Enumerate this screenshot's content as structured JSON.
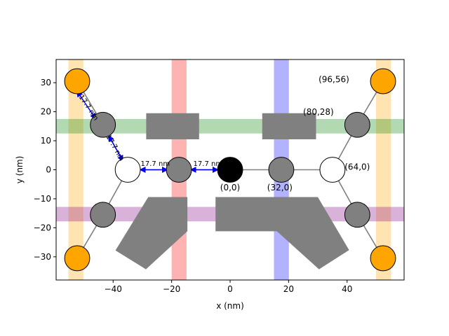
{
  "chart_data": {
    "type": "scatter",
    "title": "",
    "xlabel": "x (nm)",
    "ylabel": "y (nm)",
    "xlim": [
      -59.5,
      59.5
    ],
    "ylim": [
      -38,
      38
    ],
    "grid": false,
    "xticks": [
      -40,
      -20,
      0,
      20,
      40
    ],
    "yticks": [
      -30,
      -20,
      -10,
      0,
      10,
      20,
      30
    ],
    "bands": [
      {
        "orientation": "vertical",
        "from": -55.3,
        "to": -50.2,
        "color": "#ffa500",
        "opacity": 0.3
      },
      {
        "orientation": "vertical",
        "from": 49.9,
        "to": 55.0,
        "color": "#ffa500",
        "opacity": 0.3
      },
      {
        "orientation": "vertical",
        "from": -20.0,
        "to": -14.9,
        "color": "#ff0000",
        "opacity": 0.3
      },
      {
        "orientation": "vertical",
        "from": 15.0,
        "to": 20.1,
        "color": "#0000ff",
        "opacity": 0.3
      },
      {
        "orientation": "horizontal",
        "from": 12.5,
        "to": 17.5,
        "color": "#008000",
        "opacity": 0.3
      },
      {
        "orientation": "horizontal",
        "from": -17.8,
        "to": -12.8,
        "color": "#800080",
        "opacity": 0.3
      }
    ],
    "rectangles": [
      {
        "points": [
          [
            -28.7,
            10.5
          ],
          [
            -10.6,
            10.5
          ],
          [
            -10.6,
            19.5
          ],
          [
            -28.7,
            19.5
          ]
        ]
      },
      {
        "points": [
          [
            11.0,
            10.5
          ],
          [
            29.4,
            10.5
          ],
          [
            29.4,
            19.5
          ],
          [
            11.0,
            19.5
          ]
        ]
      },
      {
        "points": [
          [
            -28.0,
            -9.4
          ],
          [
            -14.6,
            -9.4
          ],
          [
            -14.6,
            -21.2
          ],
          [
            -28.0,
            -21.2
          ]
        ]
      },
      {
        "points": [
          [
            -28.0,
            -9.4
          ],
          [
            -14.6,
            -21.2
          ],
          [
            -28.8,
            -34.3
          ],
          [
            -39.2,
            -27.8
          ]
        ]
      },
      {
        "points": [
          [
            -5.0,
            -9.4
          ],
          [
            30.0,
            -9.4
          ],
          [
            30.0,
            -21.2
          ],
          [
            -5.0,
            -21.2
          ]
        ]
      },
      {
        "points": [
          [
            30.0,
            -9.4
          ],
          [
            40.7,
            -27.7
          ],
          [
            30.4,
            -34.3
          ],
          [
            16.0,
            -21.2
          ]
        ]
      }
    ],
    "bonds": [
      [
        [
          -52.3,
          30.5
        ],
        [
          -43.5,
          15.5
        ]
      ],
      [
        [
          -43.5,
          15.5
        ],
        [
          -35.0,
          0
        ]
      ],
      [
        [
          -35.0,
          0
        ],
        [
          -43.5,
          -15.5
        ]
      ],
      [
        [
          -43.5,
          -15.5
        ],
        [
          -52.3,
          -30.5
        ]
      ],
      [
        [
          -35.0,
          0
        ],
        [
          0,
          0
        ]
      ],
      [
        [
          0,
          0
        ],
        [
          35.0,
          0
        ]
      ],
      [
        [
          35.0,
          0
        ],
        [
          43.5,
          15.5
        ]
      ],
      [
        [
          43.5,
          15.5
        ],
        [
          52.3,
          30.5
        ]
      ],
      [
        [
          35.0,
          0
        ],
        [
          43.5,
          -15.5
        ]
      ],
      [
        [
          43.5,
          -15.5
        ],
        [
          52.3,
          -30.5
        ]
      ]
    ],
    "points": [
      {
        "x": -52.3,
        "y": 30.5,
        "color": "#ffa500"
      },
      {
        "x": -52.3,
        "y": -30.5,
        "color": "#ffa500"
      },
      {
        "x": 52.3,
        "y": 30.5,
        "color": "#ffa500"
      },
      {
        "x": 52.3,
        "y": -30.5,
        "color": "#ffa500"
      },
      {
        "x": -43.5,
        "y": 15.5,
        "color": "#808080"
      },
      {
        "x": -43.5,
        "y": -15.5,
        "color": "#808080"
      },
      {
        "x": 43.5,
        "y": 15.5,
        "color": "#808080"
      },
      {
        "x": 43.5,
        "y": -15.5,
        "color": "#808080"
      },
      {
        "x": -17.5,
        "y": 0,
        "color": "#808080"
      },
      {
        "x": 17.5,
        "y": 0,
        "color": "#808080"
      },
      {
        "x": -35.0,
        "y": 0,
        "color": "#ffffff"
      },
      {
        "x": 35.0,
        "y": 0,
        "color": "#ffffff"
      },
      {
        "x": 0,
        "y": 0,
        "color": "#000000"
      }
    ],
    "annotations": [
      {
        "text": "(0,0)",
        "x": 0.0,
        "y": -6.3
      },
      {
        "text": "(32,0)",
        "x": 17.0,
        "y": -6.3
      },
      {
        "text": "(64,0)",
        "x": 43.5,
        "y": 0.8
      },
      {
        "text": "(80,28)",
        "x": 30.2,
        "y": 19.8
      },
      {
        "text": "(96,56)",
        "x": 35.5,
        "y": 31.0
      }
    ],
    "distance_arrows": [
      {
        "from": [
          -52.3,
          27.0
        ],
        "to": [
          -46.0,
          17.6
        ],
        "label": "17.7 nm",
        "label_x": -49.0,
        "label_y": 21.0,
        "rotation": 56
      },
      {
        "from": [
          -41.5,
          11.7
        ],
        "to": [
          -36.7,
          3.1
        ],
        "label": "17.7 nm",
        "label_x": -40.0,
        "label_y": 7.2,
        "rotation": 60
      },
      {
        "from": [
          -30.7,
          0
        ],
        "to": [
          -21.5,
          0
        ],
        "label": "17.7 nm",
        "label_x": -25.6,
        "label_y": 1.3,
        "rotation": 0
      },
      {
        "from": [
          -13.4,
          0
        ],
        "to": [
          -4.2,
          0
        ],
        "label": "17.7 nm",
        "label_x": -7.6,
        "label_y": 1.3,
        "rotation": 0
      }
    ]
  }
}
